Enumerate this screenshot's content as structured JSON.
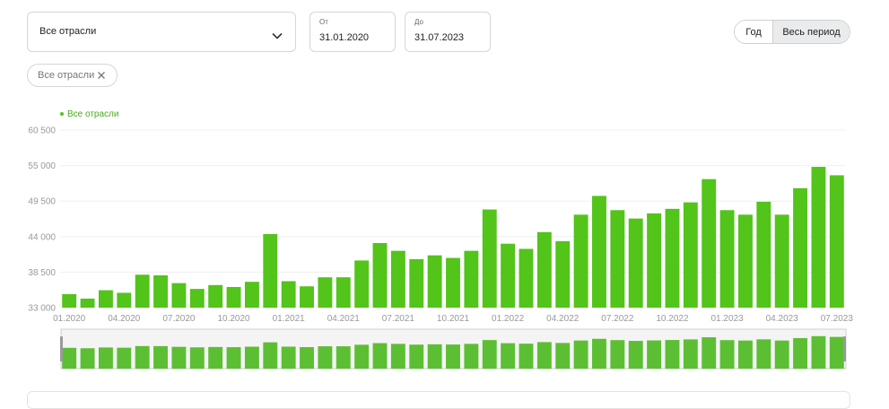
{
  "filters": {
    "industry_select": {
      "value": "Все отрасли",
      "icon": "chevron-down-icon"
    },
    "date_from": {
      "label": "От",
      "value": "31.01.2020"
    },
    "date_to": {
      "label": "До",
      "value": "31.07.2023"
    },
    "period_toggle": {
      "options": [
        "Год",
        "Весь период"
      ],
      "selected": "Весь период"
    },
    "chips": [
      {
        "label": "Все отрасли",
        "remove_icon": "close-icon"
      }
    ]
  },
  "colors": {
    "bar": "#52c41a",
    "navigator_bar": "#5cbf33",
    "legend_text": "#4aa81f"
  },
  "chart_data": {
    "type": "bar",
    "legend": [
      "Все отрасли"
    ],
    "yticks": [
      "60 500",
      "55 000",
      "49 500",
      "44 000",
      "38 500",
      "33 000"
    ],
    "ylim": [
      33000,
      60500
    ],
    "xticks": [
      "01.2020",
      "04.2020",
      "07.2020",
      "10.2020",
      "01.2021",
      "04.2021",
      "07.2021",
      "10.2021",
      "01.2022",
      "04.2022",
      "07.2022",
      "10.2022",
      "01.2023",
      "04.2023",
      "07.2023"
    ],
    "series": [
      {
        "name": "Все отрасли",
        "values": [
          35100,
          34400,
          35700,
          35300,
          38100,
          38000,
          36800,
          35900,
          36500,
          36200,
          37000,
          44400,
          37100,
          36300,
          37700,
          37700,
          40300,
          43000,
          41800,
          40500,
          41100,
          40700,
          41800,
          48200,
          42900,
          42100,
          44700,
          43300,
          47400,
          50300,
          48100,
          46800,
          47600,
          48300,
          49300,
          52900,
          48100,
          47400,
          49400,
          47400,
          51500,
          54800,
          53500
        ]
      }
    ]
  }
}
